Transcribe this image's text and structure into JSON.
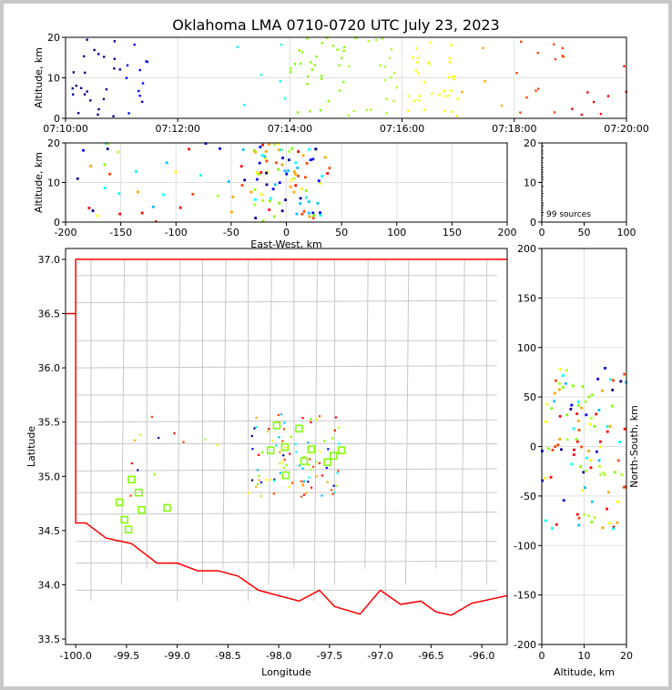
{
  "title": "Oklahoma LMA 0710-0720 UTC July 23, 2023",
  "colors": {
    "frame": "#c8c8c8",
    "county": "#c8c8c8",
    "state": "#ff0000",
    "station": "#7fff00"
  },
  "chart_data": [
    {
      "id": "time-height",
      "type": "scatter",
      "ylabel": "Altitude, km",
      "xlim": [
        0,
        600
      ],
      "ylim": [
        0,
        20
      ],
      "xticks": [
        {
          "v": 0,
          "label": "07:10:00"
        },
        {
          "v": 120,
          "label": "07:12:00"
        },
        {
          "v": 240,
          "label": "07:14:00"
        },
        {
          "v": 360,
          "label": "07:16:00"
        },
        {
          "v": 480,
          "label": "07:18:00"
        },
        {
          "v": 600,
          "label": "07:20:00"
        }
      ],
      "yticks": [
        0,
        10,
        20
      ],
      "grid": true
    },
    {
      "id": "ew-height",
      "type": "scatter",
      "xlabel": "East-West, km",
      "ylabel": "Altitude, km",
      "xlim": [
        -200,
        200
      ],
      "ylim": [
        0,
        20
      ],
      "xticks": [
        -200,
        -150,
        -100,
        -50,
        0,
        50,
        100,
        150,
        200
      ],
      "yticks": [
        0,
        10,
        20
      ],
      "grid": true
    },
    {
      "id": "histogram",
      "type": "bar",
      "annotation": "99 sources",
      "xlim": [
        0,
        100
      ],
      "ylim": [
        0,
        20
      ],
      "xticks": [
        0,
        50,
        100
      ],
      "yticks": [
        0,
        10,
        20
      ]
    },
    {
      "id": "plan-view",
      "type": "scatter",
      "xlabel": "Longitude",
      "ylabel": "Latitude",
      "xlim": [
        -100.1,
        -95.75
      ],
      "ylim": [
        33.45,
        37.1
      ],
      "xticks": [
        -100.0,
        -99.5,
        -99.0,
        -98.5,
        -98.0,
        -97.5,
        -97.0,
        -96.5,
        -96.0
      ],
      "yticks": [
        33.5,
        34.0,
        34.5,
        35.0,
        35.5,
        36.0,
        36.5,
        37.0
      ],
      "stations": [
        [
          -99.45,
          34.97
        ],
        [
          -99.38,
          34.85
        ],
        [
          -99.57,
          34.76
        ],
        [
          -99.52,
          34.6
        ],
        [
          -99.48,
          34.51
        ],
        [
          -99.35,
          34.69
        ],
        [
          -99.1,
          34.71
        ],
        [
          -98.08,
          35.24
        ],
        [
          -98.02,
          35.47
        ],
        [
          -97.94,
          35.27
        ],
        [
          -97.93,
          35.01
        ],
        [
          -97.8,
          35.44
        ],
        [
          -97.75,
          35.14
        ],
        [
          -97.68,
          35.25
        ],
        [
          -97.52,
          35.13
        ],
        [
          -97.46,
          35.19
        ],
        [
          -97.38,
          35.24
        ]
      ]
    },
    {
      "id": "ns-height",
      "type": "scatter",
      "xlabel": "Altitude, km",
      "ylabel": "North-South, km",
      "xlim": [
        0,
        20
      ],
      "ylim": [
        -200,
        200
      ],
      "xticks": [
        0,
        10,
        20
      ],
      "yticks": [
        -200,
        -150,
        -100,
        -50,
        0,
        50,
        100,
        150,
        200
      ],
      "grid": true
    }
  ]
}
